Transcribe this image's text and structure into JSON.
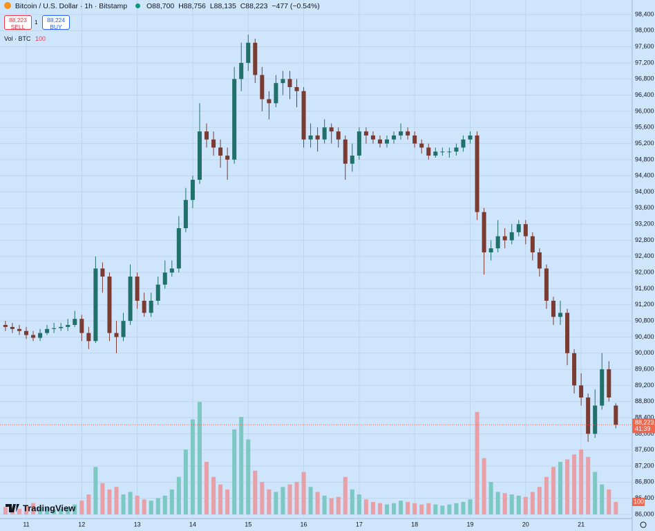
{
  "header": {
    "symbol": "Bitcoin / U.S. Dollar · 1h · Bitstamp",
    "open": "O88,700",
    "high": "H88,756",
    "low": "L88,135",
    "close": "C88,223",
    "change": "−477 (−0.54%)"
  },
  "trade": {
    "sell_price": "88,223",
    "sell": "SELL",
    "quantity": "1",
    "buy_price": "88,224",
    "buy": "BUY"
  },
  "volume_legend": {
    "name": "Vol · BTC",
    "last": "100"
  },
  "last_price": {
    "price": "88,223",
    "countdown": "41:39"
  },
  "logo": "TradingView",
  "chart_data": {
    "type": "candlestick",
    "up_color": "#22706b",
    "down_color": "#7a3b33",
    "volume_up_color": "#7ec8c4",
    "volume_down_color": "#e8a0a8",
    "last_color": "#f0664f",
    "grid": true,
    "x": [
      10.625,
      10.75,
      10.875,
      11,
      11.125,
      11.25,
      11.375,
      11.5,
      11.625,
      11.75,
      11.875,
      12,
      12.125,
      12.25,
      12.375,
      12.5,
      12.625,
      12.75,
      12.875,
      13,
      13.125,
      13.25,
      13.375,
      13.5,
      13.625,
      13.75,
      13.875,
      14,
      14.125,
      14.25,
      14.375,
      14.5,
      14.625,
      14.75,
      14.875,
      15,
      15.125,
      15.25,
      15.375,
      15.5,
      15.625,
      15.75,
      15.875,
      16,
      16.125,
      16.25,
      16.375,
      16.5,
      16.625,
      16.75,
      16.875,
      17,
      17.125,
      17.25,
      17.375,
      17.5,
      17.625,
      17.75,
      17.875,
      18,
      18.125,
      18.25,
      18.375,
      18.5,
      18.625,
      18.75,
      18.875,
      19,
      19.125,
      19.25,
      19.375,
      19.5,
      19.625,
      19.75,
      19.875,
      20,
      20.125,
      20.25,
      20.375,
      20.5,
      20.625,
      20.75,
      20.875,
      21,
      21.125,
      21.25,
      21.375,
      21.5,
      21.625
    ],
    "open": [
      90700,
      90650,
      90600,
      90550,
      90450,
      90380,
      90500,
      90600,
      90620,
      90650,
      90700,
      90850,
      90500,
      90300,
      92100,
      91900,
      90500,
      90400,
      90800,
      91900,
      91300,
      91000,
      91300,
      91700,
      92000,
      92100,
      93100,
      93800,
      94300,
      95500,
      95300,
      95100,
      94900,
      94800,
      96800,
      97200,
      97700,
      96900,
      96300,
      96200,
      96700,
      96800,
      96600,
      96500,
      95300,
      95400,
      95300,
      95600,
      95500,
      95300,
      94700,
      94900,
      95500,
      95400,
      95300,
      95200,
      95300,
      95400,
      95500,
      95400,
      95200,
      95100,
      94900,
      95000,
      95000,
      95000,
      95100,
      95300,
      95400,
      93500,
      92500,
      92600,
      92900,
      92800,
      93000,
      93200,
      92900,
      92500,
      92100,
      91300,
      90900,
      91000,
      90000,
      89200,
      88900,
      88000,
      88700,
      89600,
      88700
    ],
    "high": [
      90800,
      90750,
      90700,
      90650,
      90550,
      90600,
      90700,
      90750,
      90750,
      90850,
      91050,
      90950,
      90650,
      92400,
      92250,
      92000,
      90800,
      91000,
      92200,
      92000,
      91500,
      91500,
      91900,
      92300,
      92300,
      93400,
      94100,
      94400,
      96200,
      95700,
      95500,
      95300,
      95100,
      97100,
      97700,
      97900,
      97800,
      97100,
      96500,
      96900,
      97000,
      97000,
      96800,
      96600,
      95700,
      95600,
      95800,
      95700,
      95600,
      95400,
      95200,
      95600,
      95600,
      95500,
      95400,
      95400,
      95500,
      95700,
      95600,
      95500,
      95300,
      95200,
      95100,
      95100,
      95100,
      95200,
      95400,
      95500,
      95500,
      93600,
      92800,
      93300,
      93100,
      93200,
      93300,
      93300,
      93000,
      92600,
      92200,
      91400,
      91300,
      91100,
      90100,
      89500,
      89000,
      89100,
      90000,
      89800,
      88756
    ],
    "low": [
      90550,
      90500,
      90450,
      90350,
      90300,
      90300,
      90450,
      90500,
      90550,
      90550,
      90650,
      90300,
      90100,
      90250,
      91500,
      90300,
      90000,
      90300,
      90700,
      91100,
      90900,
      90900,
      91200,
      91600,
      91900,
      92000,
      93000,
      93600,
      94200,
      95100,
      94900,
      94600,
      94300,
      94700,
      96500,
      97000,
      96700,
      96000,
      95800,
      96100,
      96400,
      96300,
      96100,
      95100,
      95100,
      95000,
      95200,
      95200,
      95100,
      94300,
      94500,
      94800,
      95200,
      95200,
      95100,
      95100,
      95200,
      95300,
      95300,
      95100,
      94950,
      94800,
      94850,
      94900,
      94850,
      94900,
      95000,
      95200,
      93300,
      91950,
      92300,
      92500,
      92600,
      92700,
      92900,
      92700,
      92300,
      91900,
      91100,
      90700,
      90700,
      89700,
      89000,
      88700,
      87800,
      87900,
      88600,
      88800,
      88135
    ],
    "close": [
      90650,
      90600,
      90550,
      90450,
      90380,
      90500,
      90600,
      90620,
      90650,
      90700,
      90850,
      90500,
      90300,
      92100,
      91900,
      90500,
      90400,
      90800,
      91900,
      91300,
      91000,
      91300,
      91700,
      92000,
      92100,
      93100,
      93800,
      94300,
      95500,
      95300,
      95100,
      94900,
      94800,
      96800,
      97200,
      97700,
      96900,
      96300,
      96200,
      96700,
      96800,
      96600,
      96500,
      95300,
      95400,
      95300,
      95600,
      95500,
      95300,
      94700,
      94900,
      95500,
      95400,
      95300,
      95200,
      95300,
      95400,
      95500,
      95400,
      95200,
      95100,
      94900,
      95000,
      95000,
      95000,
      95100,
      95300,
      95400,
      93500,
      92500,
      92600,
      92900,
      92800,
      93000,
      93200,
      92900,
      92500,
      92100,
      91300,
      90900,
      91000,
      90000,
      89200,
      88900,
      88000,
      88700,
      89600,
      88900,
      88223
    ],
    "volume": [
      60,
      50,
      45,
      70,
      90,
      60,
      50,
      40,
      45,
      60,
      80,
      110,
      160,
      380,
      250,
      200,
      220,
      160,
      180,
      150,
      120,
      110,
      130,
      150,
      200,
      300,
      520,
      760,
      900,
      420,
      300,
      240,
      200,
      680,
      780,
      600,
      350,
      260,
      200,
      180,
      220,
      240,
      260,
      340,
      220,
      180,
      150,
      130,
      140,
      300,
      200,
      160,
      120,
      100,
      90,
      80,
      90,
      110,
      100,
      90,
      80,
      90,
      80,
      70,
      80,
      90,
      100,
      120,
      820,
      450,
      260,
      180,
      170,
      160,
      150,
      140,
      180,
      220,
      300,
      380,
      420,
      440,
      480,
      520,
      460,
      340,
      240,
      200,
      100
    ],
    "volume_ylim": [
      0,
      4000
    ],
    "xlim": [
      10.527,
      21.92
    ],
    "xticks": [
      11,
      12,
      13,
      14,
      15,
      16,
      17,
      18,
      19,
      20,
      21
    ],
    "ylim": [
      86000,
      98400
    ],
    "yticks": [
      {
        "value": 86000,
        "label": "86,000"
      },
      {
        "value": 86400,
        "label": "86,400"
      },
      {
        "value": 86800,
        "label": "86,800"
      },
      {
        "value": 87200,
        "label": "87,200"
      },
      {
        "value": 87600,
        "label": "87,600"
      },
      {
        "value": 88000,
        "label": "88,000"
      },
      {
        "value": 88400,
        "label": "88,400"
      },
      {
        "value": 88800,
        "label": "88,800"
      },
      {
        "value": 89200,
        "label": "89,200"
      },
      {
        "value": 89600,
        "label": "89,600"
      },
      {
        "value": 90000,
        "label": "90,000"
      },
      {
        "value": 90400,
        "label": "90,400"
      },
      {
        "value": 90800,
        "label": "90,800"
      },
      {
        "value": 91200,
        "label": "91,200"
      },
      {
        "value": 91600,
        "label": "91,600"
      },
      {
        "value": 92000,
        "label": "92,000"
      },
      {
        "value": 92400,
        "label": "92,400"
      },
      {
        "value": 92800,
        "label": "92,800"
      },
      {
        "value": 93200,
        "label": "93,200"
      },
      {
        "value": 93600,
        "label": "93,600"
      },
      {
        "value": 94000,
        "label": "94,000"
      },
      {
        "value": 94400,
        "label": "94,400"
      },
      {
        "value": 94800,
        "label": "94,800"
      },
      {
        "value": 95200,
        "label": "95,200"
      },
      {
        "value": 95600,
        "label": "95,600"
      },
      {
        "value": 96000,
        "label": "96,000"
      },
      {
        "value": 96400,
        "label": "96,400"
      },
      {
        "value": 96800,
        "label": "96,800"
      },
      {
        "value": 97200,
        "label": "97,200"
      },
      {
        "value": 97600,
        "label": "97,600"
      },
      {
        "value": 98000,
        "label": "98,000"
      },
      {
        "value": 98400,
        "label": "98,400"
      }
    ]
  }
}
